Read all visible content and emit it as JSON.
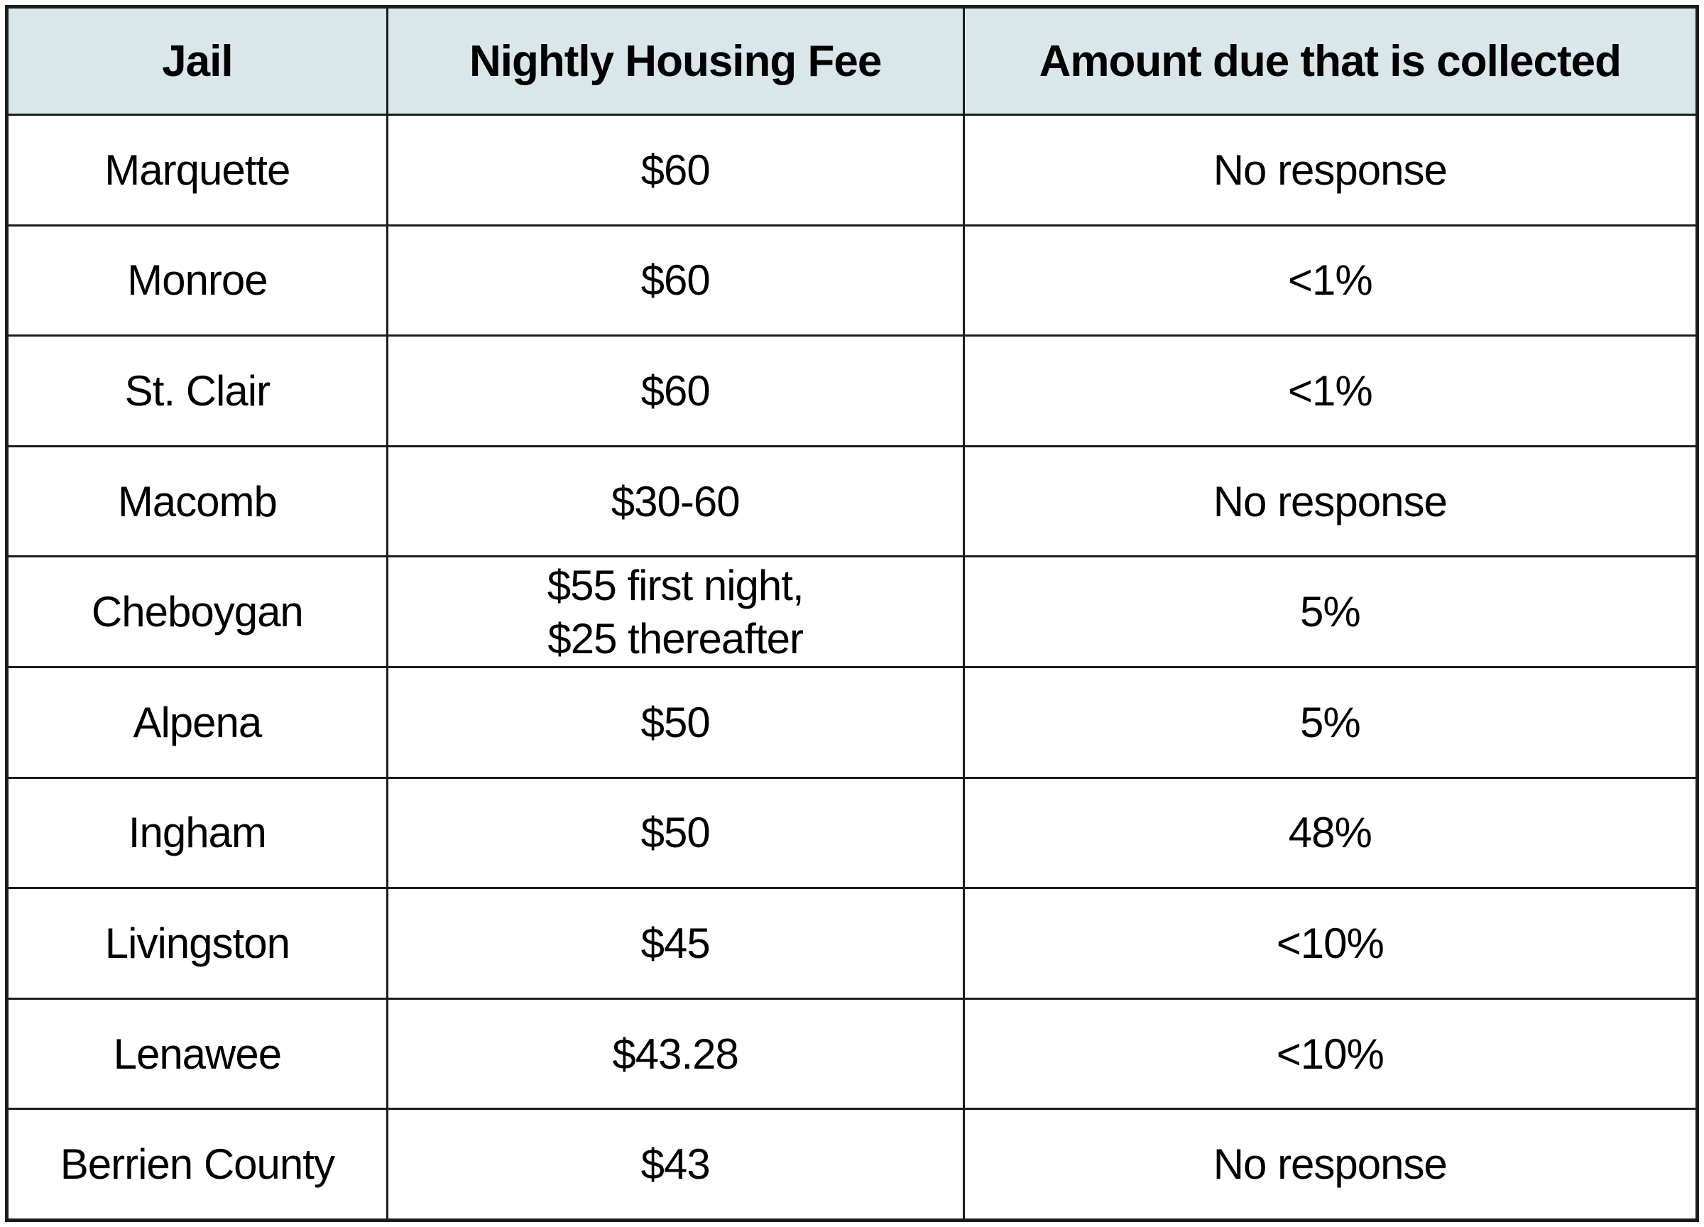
{
  "colors": {
    "header_bg": "#d9e7eb",
    "border": "#1c1c1c",
    "cell_bg": "#ffffff",
    "text": "#000000"
  },
  "table": {
    "columns": {
      "jail": "Jail",
      "fee": "Nightly Housing Fee",
      "collected": "Amount due that is collected"
    },
    "rows": [
      {
        "jail": "Marquette",
        "fee": "$60",
        "collected": "No response"
      },
      {
        "jail": "Monroe",
        "fee": "$60",
        "collected": "<1%"
      },
      {
        "jail": "St. Clair",
        "fee": "$60",
        "collected": "<1%"
      },
      {
        "jail": "Macomb",
        "fee": "$30-60",
        "collected": "No response"
      },
      {
        "jail": "Cheboygan",
        "fee": "$55 first night,\n$25 thereafter",
        "collected": "5%"
      },
      {
        "jail": "Alpena",
        "fee": "$50",
        "collected": "5%"
      },
      {
        "jail": "Ingham",
        "fee": "$50",
        "collected": "48%"
      },
      {
        "jail": "Livingston",
        "fee": "$45",
        "collected": "<10%"
      },
      {
        "jail": "Lenawee",
        "fee": "$43.28",
        "collected": "<10%"
      },
      {
        "jail": "Berrien County",
        "fee": "$43",
        "collected": "No response"
      }
    ]
  },
  "chart_data": {
    "type": "table",
    "title": "",
    "columns": [
      "Jail",
      "Nightly Housing Fee",
      "Amount due that is collected"
    ],
    "rows": [
      [
        "Marquette",
        "$60",
        "No response"
      ],
      [
        "Monroe",
        "$60",
        "<1%"
      ],
      [
        "St. Clair",
        "$60",
        "<1%"
      ],
      [
        "Macomb",
        "$30-60",
        "No response"
      ],
      [
        "Cheboygan",
        "$55 first night, $25 thereafter",
        "5%"
      ],
      [
        "Alpena",
        "$50",
        "5%"
      ],
      [
        "Ingham",
        "$50",
        "48%"
      ],
      [
        "Livingston",
        "$45",
        "<10%"
      ],
      [
        "Lenawee",
        "$43.28",
        "<10%"
      ],
      [
        "Berrien County",
        "$43",
        "No response"
      ]
    ]
  }
}
